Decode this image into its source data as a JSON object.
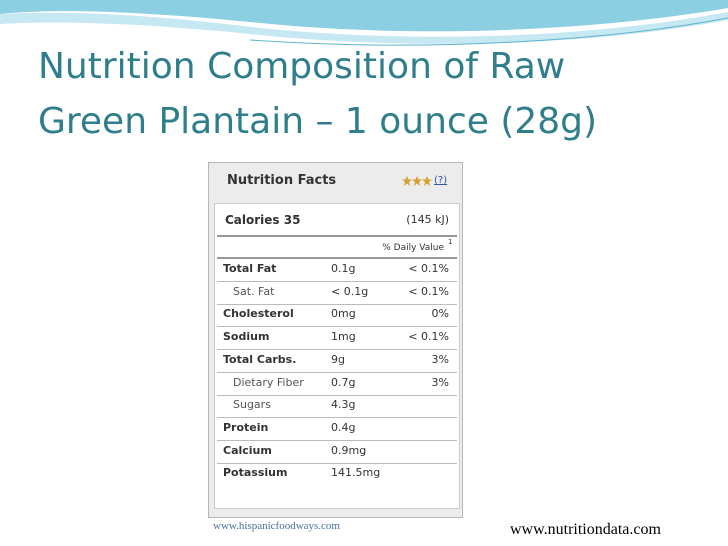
{
  "title": {
    "line1": "Nutrition Composition of Raw",
    "line2": "Green Plantain – 1 ounce (28g)"
  },
  "panel": {
    "heading": "Nutrition Facts",
    "help": "(?)",
    "calories": "Calories 35",
    "energy": "(145 kJ)",
    "daily_value": "% Daily Value",
    "footnote_mark": "1",
    "rows": [
      {
        "name": "Total Fat",
        "amount": "0.1g",
        "dv": "< 0.1%"
      },
      {
        "name": "Sat. Fat",
        "amount": "< 0.1g",
        "dv": "< 0.1%",
        "indent": true
      },
      {
        "name": "Cholesterol",
        "amount": "0mg",
        "dv": "0%"
      },
      {
        "name": "Sodium",
        "amount": "1mg",
        "dv": "< 0.1%"
      },
      {
        "name": "Total Carbs.",
        "amount": "9g",
        "dv": "3%"
      },
      {
        "name": "Dietary Fiber",
        "amount": "0.7g",
        "dv": "3%",
        "indent": true
      },
      {
        "name": "Sugars",
        "amount": "4.3g",
        "indent": true
      },
      {
        "name": "Protein",
        "amount": "0.4g"
      },
      {
        "name": "Calcium",
        "amount": "0.9mg"
      },
      {
        "name": "Potassium",
        "amount": "141.5mg"
      }
    ]
  },
  "footer": {
    "left": "www.hispanicfoodways.com",
    "right": "www.nutritiondata.com"
  }
}
